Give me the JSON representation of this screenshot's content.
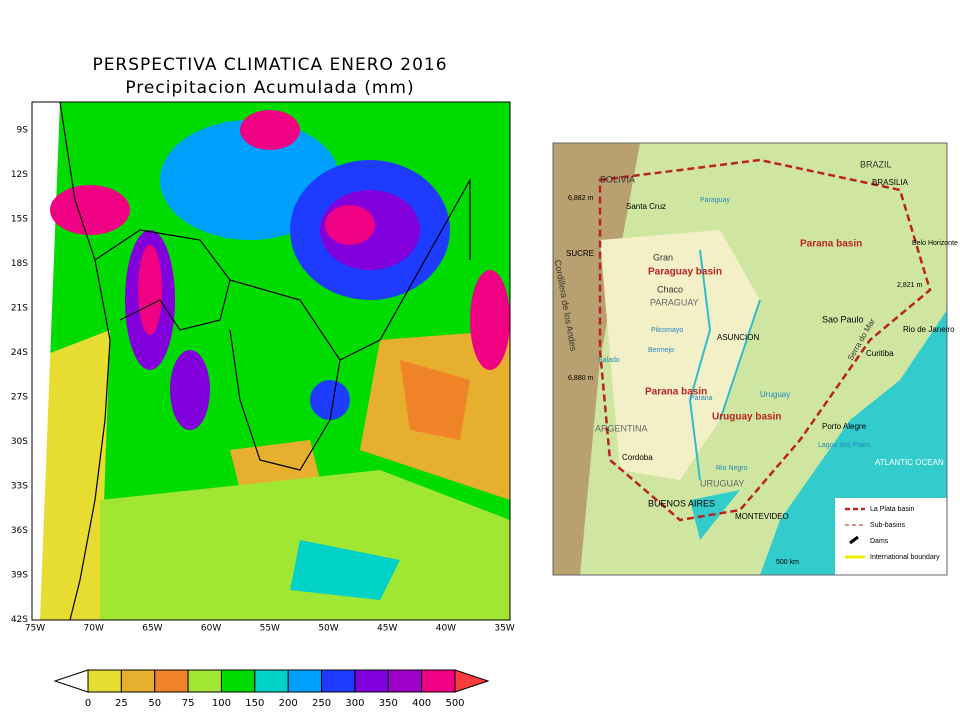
{
  "left_map": {
    "title": "PERSPECTIVA CLIMATICA ENERO 2016",
    "subtitle": "Precipitacion Acumulada (mm)",
    "lat_labels": [
      "9S",
      "12S",
      "15S",
      "18S",
      "21S",
      "24S",
      "27S",
      "30S",
      "33S",
      "36S",
      "39S",
      "42S"
    ],
    "lon_labels": [
      "75W",
      "70W",
      "65W",
      "60W",
      "55W",
      "50W",
      "45W",
      "40W",
      "35W"
    ],
    "colorbar": {
      "labels": [
        "0",
        "25",
        "50",
        "75",
        "100",
        "150",
        "200",
        "250",
        "300",
        "350",
        "400",
        "500"
      ],
      "colors": [
        "#e6dc32",
        "#e6af2d",
        "#f08228",
        "#a0e632",
        "#00dc00",
        "#00d2c8",
        "#00a0ff",
        "#1e3cff",
        "#8200dc",
        "#a000c8",
        "#f00082"
      ],
      "under_color": "#ffffff",
      "over_color": "#fa3c3c"
    }
  },
  "right_map": {
    "labels": [
      "BOLIVIA",
      "BRAZIL",
      "BRASILIA",
      "6,882 m",
      "Santa Cruz",
      "SUCRE",
      "Gran",
      "Chaco",
      "Paraguay basin",
      "PARAGUAY",
      "Parana basin",
      "Belo Horizonte",
      "Sao Paulo",
      "Rio de Janeiro",
      "2,821 m",
      "ASUNCION",
      "Curitiba",
      "6,880 m",
      "Parana basin",
      "Uruguay basin",
      "ARGENTINA",
      "Cordoba",
      "Porto Alegre",
      "Lagoa dos Patos",
      "ATLANTIC OCEAN",
      "URUGUAY",
      "BUENOS AIRES",
      "MONTEVIDEO",
      "Cordillera de los Andes",
      "Rio Negro",
      "Uruguay",
      "Parana",
      "Paraguay",
      "Pilcomayo",
      "Bermejo",
      "Salado",
      "Serra do Mar",
      "500 km"
    ],
    "legend": [
      "La Plata basin",
      "Sub-basins",
      "Dams",
      "International boundary"
    ]
  }
}
